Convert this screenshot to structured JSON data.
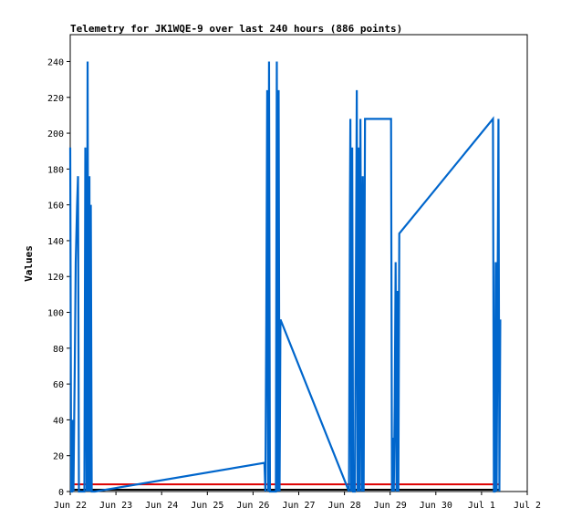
{
  "chart_data": {
    "type": "line",
    "title": "Telemetry for JK1WQE-9 over last 240 hours (886 points)",
    "xlabel": "",
    "ylabel": "Values",
    "x_ticks": [
      "Jun 22",
      "Jun 23",
      "Jun 24",
      "Jun 25",
      "Jun 26",
      "Jun 27",
      "Jun 28",
      "Jun 29",
      "Jun 30",
      "Jul 1",
      "Jul 2"
    ],
    "y_ticks": [
      0,
      20,
      40,
      60,
      80,
      100,
      120,
      140,
      160,
      180,
      200,
      220,
      240
    ],
    "xlim_days": [
      0,
      10
    ],
    "ylim": [
      0,
      255
    ],
    "grid": false,
    "series": [
      {
        "color": "#0066cc",
        "x_days": [
          0.0,
          0.02,
          0.04,
          0.05,
          0.07,
          0.1,
          0.12,
          0.15,
          0.17,
          0.19,
          0.21,
          0.22,
          0.24,
          0.26,
          0.27,
          0.29,
          0.31,
          0.33,
          0.36,
          0.38,
          0.4,
          0.42,
          0.43,
          0.45,
          0.47,
          0.49,
          0.5,
          0.52,
          0.54,
          4.25,
          4.27,
          4.29,
          4.31,
          4.33,
          4.35,
          4.37,
          4.4,
          4.42,
          4.45,
          4.48,
          4.5,
          4.52,
          4.54,
          4.56,
          4.58,
          4.6,
          6.1,
          6.12,
          6.13,
          6.15,
          6.17,
          6.19,
          6.21,
          6.23,
          6.25,
          6.27,
          6.29,
          6.31,
          6.33,
          6.35,
          6.38,
          6.4,
          6.42,
          6.45,
          7.02,
          7.04,
          7.06,
          7.08,
          7.1,
          7.12,
          7.14,
          7.16,
          7.18,
          7.2,
          9.25,
          9.27,
          9.29,
          9.31,
          9.33,
          9.35,
          9.37,
          9.39,
          9.41
        ],
        "y": [
          192,
          0,
          0,
          40,
          0,
          72,
          128,
          160,
          176,
          0,
          0,
          0,
          0,
          0,
          0,
          0,
          0,
          192,
          0,
          240,
          0,
          176,
          0,
          160,
          0,
          0,
          0,
          0,
          0,
          16,
          0,
          96,
          224,
          0,
          240,
          0,
          0,
          0,
          0,
          0,
          0,
          240,
          0,
          224,
          0,
          96,
          0,
          160,
          208,
          0,
          192,
          0,
          0,
          0,
          112,
          224,
          0,
          192,
          0,
          208,
          0,
          176,
          0,
          208,
          208,
          0,
          30,
          0,
          48,
          128,
          0,
          112,
          0,
          144,
          208,
          0,
          0,
          128,
          0,
          104,
          208,
          0,
          96
        ]
      },
      {
        "color": "#dd0000",
        "x_days": [
          0.0,
          9.41
        ],
        "y": [
          4,
          4
        ]
      },
      {
        "color": "#000000",
        "x_days": [
          0.0,
          9.41
        ],
        "y": [
          1,
          1
        ]
      }
    ]
  }
}
